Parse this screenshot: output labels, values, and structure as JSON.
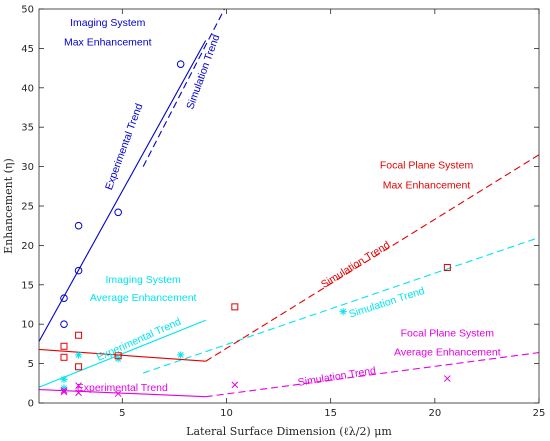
{
  "chart_data": {
    "type": "scatter",
    "title": "",
    "xlabel": "Lateral Surface Dimension (ℓλ/2) μm",
    "ylabel": "Enhancement (η)",
    "xlim": [
      1,
      25
    ],
    "ylim": [
      0,
      50
    ],
    "x_ticks": [
      5,
      10,
      15,
      20,
      25
    ],
    "y_ticks": [
      0,
      5,
      10,
      15,
      20,
      25,
      30,
      35,
      40,
      45,
      50
    ],
    "grid": false,
    "series": [
      {
        "color": "#0000cc",
        "marker": "circle",
        "x": [
          2.2,
          2.2,
          2.9,
          2.9,
          4.8,
          7.8
        ],
        "y": [
          10.0,
          13.3,
          16.8,
          22.5,
          24.2,
          43.0
        ]
      },
      {
        "color": "#00e5ee",
        "marker": "asterisk",
        "x": [
          2.2,
          2.2,
          2.9,
          4.8,
          7.8,
          15.6
        ],
        "y": [
          1.9,
          3.0,
          6.1,
          5.6,
          6.1,
          11.6
        ]
      },
      {
        "color": "#e60000",
        "marker": "square",
        "x": [
          2.2,
          2.2,
          2.9,
          2.9,
          4.8,
          10.4,
          20.6
        ],
        "y": [
          5.8,
          7.2,
          4.6,
          8.6,
          6.0,
          12.2,
          17.2
        ]
      },
      {
        "color": "#e600e6",
        "marker": "x",
        "x": [
          2.2,
          2.2,
          2.9,
          2.9,
          4.8,
          10.4,
          20.6
        ],
        "y": [
          1.4,
          1.6,
          1.3,
          2.2,
          1.2,
          2.3,
          3.1
        ]
      }
    ],
    "trend_lines": [
      {
        "color": "#0000cc",
        "style": "solid",
        "x": [
          1,
          9.0
        ],
        "y": [
          7.8,
          46.0
        ]
      },
      {
        "color": "#0000cc",
        "style": "dashed",
        "x": [
          6.0,
          9.9
        ],
        "y": [
          30.0,
          50.0
        ]
      },
      {
        "color": "#00e5ee",
        "style": "solid",
        "x": [
          1,
          9.0
        ],
        "y": [
          2.0,
          10.5
        ]
      },
      {
        "color": "#00e5ee",
        "style": "dashed",
        "x": [
          6.0,
          25
        ],
        "y": [
          3.8,
          21.0
        ]
      },
      {
        "color": "#e60000",
        "style": "solid",
        "x": [
          1,
          9.0
        ],
        "y": [
          6.8,
          5.3
        ]
      },
      {
        "color": "#e60000",
        "style": "dashed",
        "x": [
          9.0,
          25
        ],
        "y": [
          5.3,
          31.5
        ]
      },
      {
        "color": "#e600e6",
        "style": "solid",
        "x": [
          1,
          9.0
        ],
        "y": [
          1.7,
          0.8
        ]
      },
      {
        "color": "#e600e6",
        "style": "dashed",
        "x": [
          9.0,
          25
        ],
        "y": [
          0.8,
          6.4
        ]
      }
    ],
    "annotations": [
      {
        "name": "imaging-max-label-1",
        "text": "Imaging System",
        "x": 4.3,
        "y": 48.2,
        "color": "#0000cc",
        "rotate": 0
      },
      {
        "name": "imaging-max-label-2",
        "text": "Max Enhancement",
        "x": 4.3,
        "y": 45.7,
        "color": "#0000cc",
        "rotate": 0
      },
      {
        "name": "exp-trend-blue-label",
        "text": "Experimental Trend",
        "x": 5.1,
        "y": 32.5,
        "color": "#0000cc",
        "rotate": -70
      },
      {
        "name": "sim-trend-blue-label",
        "text": "Simulation Trend",
        "x": 8.9,
        "y": 42.0,
        "color": "#0000cc",
        "rotate": -70
      },
      {
        "name": "focal-max-label-1",
        "text": "Focal Plane System",
        "x": 19.6,
        "y": 30.1,
        "color": "#e60000",
        "rotate": 0
      },
      {
        "name": "focal-max-label-2",
        "text": "Max Enhancement",
        "x": 19.6,
        "y": 27.6,
        "color": "#e60000",
        "rotate": 0
      },
      {
        "name": "sim-trend-red-label",
        "text": "Simulation Trend",
        "x": 16.2,
        "y": 17.5,
        "color": "#e60000",
        "rotate": -32
      },
      {
        "name": "imaging-avg-label-1",
        "text": "Imaging System",
        "x": 6.0,
        "y": 15.6,
        "color": "#00e5ee",
        "rotate": 0
      },
      {
        "name": "imaging-avg-label-2",
        "text": "Average Enhancement",
        "x": 6.0,
        "y": 13.3,
        "color": "#00e5ee",
        "rotate": 0
      },
      {
        "name": "exp-trend-cyan-label",
        "text": "Experimental Trend",
        "x": 5.8,
        "y": 8.0,
        "color": "#00e5ee",
        "rotate": -24
      },
      {
        "name": "sim-trend-cyan-label",
        "text": "Simulation Trend",
        "x": 17.7,
        "y": 12.7,
        "color": "#00e5ee",
        "rotate": -18
      },
      {
        "name": "focal-avg-label-1",
        "text": "Focal Plane System",
        "x": 20.6,
        "y": 8.8,
        "color": "#e600e6",
        "rotate": 0
      },
      {
        "name": "focal-avg-label-2",
        "text": "Average Enhancement",
        "x": 20.6,
        "y": 6.4,
        "color": "#e600e6",
        "rotate": 0
      },
      {
        "name": "exp-trend-magenta-label",
        "text": "Experimental Trend",
        "x": 5.0,
        "y": 1.9,
        "color": "#e600e6",
        "rotate": 0
      },
      {
        "name": "sim-trend-magenta-label",
        "text": "Simulation Trend",
        "x": 15.3,
        "y": 3.3,
        "color": "#e600e6",
        "rotate": -9
      }
    ]
  }
}
